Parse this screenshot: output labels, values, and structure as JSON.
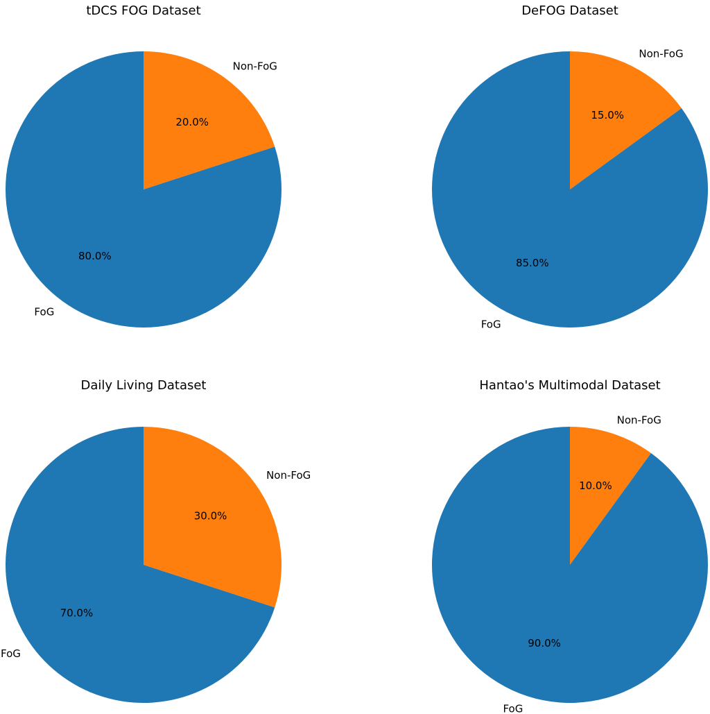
{
  "chart_data": [
    {
      "type": "pie",
      "title": "tDCS FOG Dataset",
      "slices": [
        {
          "label": "Non-FoG",
          "value": 20.0,
          "pct_label": "20.0%",
          "color": "#ff7f0e"
        },
        {
          "label": "FoG",
          "value": 80.0,
          "pct_label": "80.0%",
          "color": "#1f77b4"
        }
      ],
      "start_angle": 90,
      "direction": "clockwise"
    },
    {
      "type": "pie",
      "title": "DeFOG Dataset",
      "slices": [
        {
          "label": "Non-FoG",
          "value": 15.0,
          "pct_label": "15.0%",
          "color": "#ff7f0e"
        },
        {
          "label": "FoG",
          "value": 85.0,
          "pct_label": "85.0%",
          "color": "#1f77b4"
        }
      ],
      "start_angle": 90,
      "direction": "clockwise"
    },
    {
      "type": "pie",
      "title": "Daily Living Dataset",
      "slices": [
        {
          "label": "Non-FoG",
          "value": 30.0,
          "pct_label": "30.0%",
          "color": "#ff7f0e"
        },
        {
          "label": "FoG",
          "value": 70.0,
          "pct_label": "70.0%",
          "color": "#1f77b4"
        }
      ],
      "start_angle": 90,
      "direction": "clockwise"
    },
    {
      "type": "pie",
      "title": "Hantao's Multimodal Dataset",
      "slices": [
        {
          "label": "Non-FoG",
          "value": 10.0,
          "pct_label": "10.0%",
          "color": "#ff7f0e"
        },
        {
          "label": "FoG",
          "value": 90.0,
          "pct_label": "90.0%",
          "color": "#1f77b4"
        }
      ],
      "start_angle": 90,
      "direction": "clockwise"
    }
  ]
}
